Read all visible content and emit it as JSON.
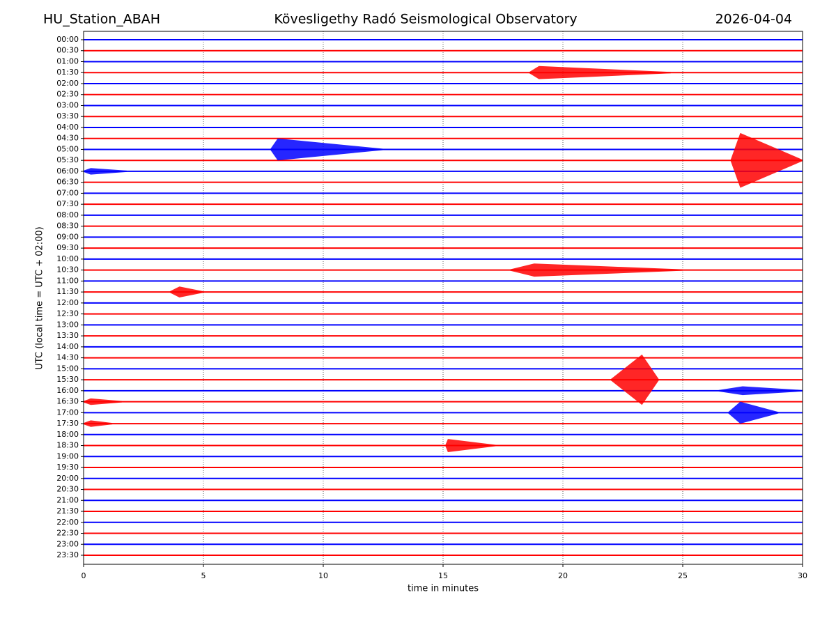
{
  "chart_data": {
    "type": "helicorder",
    "station": "HU_Station_ABAH",
    "title": "Kövesligethy Radó Seismological Observatory",
    "date": "2026-04-04",
    "ylabel": "UTC (local time = UTC + 02:00)",
    "xlabel": "time in minutes",
    "xlim": [
      0,
      30
    ],
    "xticks": [
      0,
      5,
      10,
      15,
      20,
      25,
      30
    ],
    "grid": true,
    "colors": [
      "#0000ff",
      "#ff0000"
    ],
    "categories": [
      "00:00",
      "00:30",
      "01:00",
      "01:30",
      "02:00",
      "02:30",
      "03:00",
      "03:30",
      "04:00",
      "04:30",
      "05:00",
      "05:30",
      "06:00",
      "06:30",
      "07:00",
      "07:30",
      "08:00",
      "08:30",
      "09:00",
      "09:30",
      "10:00",
      "10:30",
      "11:00",
      "11:30",
      "12:00",
      "12:30",
      "13:00",
      "13:30",
      "14:00",
      "14:30",
      "15:00",
      "15:30",
      "16:00",
      "16:30",
      "17:00",
      "17:30",
      "18:00",
      "18:30",
      "19:00",
      "19:30",
      "20:00",
      "20:30",
      "21:00",
      "21:30",
      "22:00",
      "22:30",
      "23:00",
      "23:30"
    ],
    "events": [
      {
        "row": 3,
        "start": 18.6,
        "peak": 19,
        "end": 24.5,
        "amplitude": 0.6
      },
      {
        "row": 10,
        "start": 7.8,
        "peak": 8.1,
        "end": 12.5,
        "amplitude": 1
      },
      {
        "row": 11,
        "start": 27,
        "peak": 27.4,
        "end": 30,
        "amplitude": 2.5
      },
      {
        "row": 12,
        "start": 0,
        "peak": 0.3,
        "end": 1.8,
        "amplitude": 0.3
      },
      {
        "row": 21,
        "start": 17.8,
        "peak": 18.8,
        "end": 25,
        "amplitude": 0.6
      },
      {
        "row": 23,
        "start": 3.6,
        "peak": 4,
        "end": 5,
        "amplitude": 0.5
      },
      {
        "row": 31,
        "start": 22,
        "peak": 23.3,
        "end": 24,
        "amplitude": 2.3
      },
      {
        "row": 32,
        "start": 26.5,
        "peak": 27.5,
        "end": 30,
        "amplitude": 0.4
      },
      {
        "row": 33,
        "start": 0,
        "peak": 0.3,
        "end": 1.6,
        "amplitude": 0.3
      },
      {
        "row": 34,
        "start": 26.9,
        "peak": 27.4,
        "end": 29,
        "amplitude": 1
      },
      {
        "row": 35,
        "start": 0,
        "peak": 0.3,
        "end": 1.2,
        "amplitude": 0.3
      },
      {
        "row": 37,
        "start": 15.1,
        "peak": 15.2,
        "end": 17.2,
        "amplitude": 0.6
      }
    ]
  }
}
